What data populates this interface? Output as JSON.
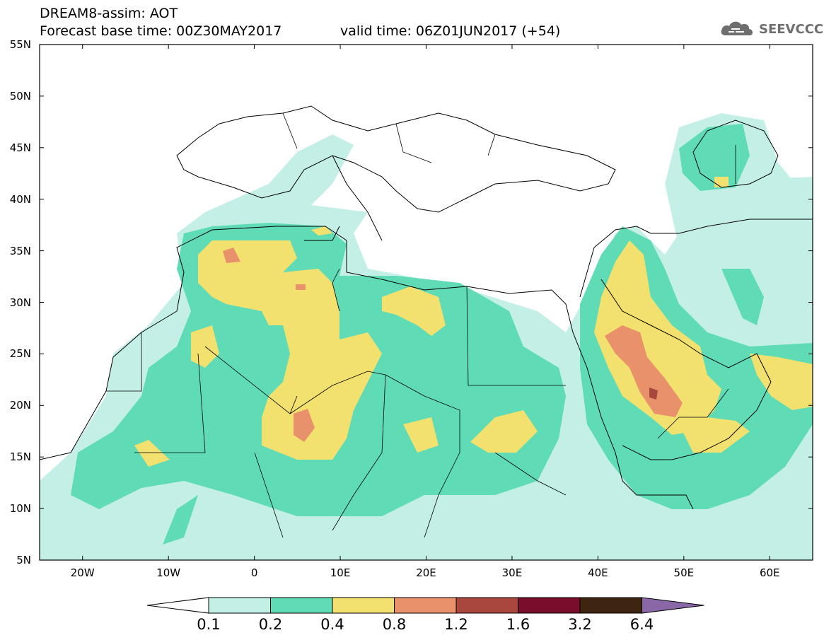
{
  "header": {
    "line1": "DREAM8-assim: AOT",
    "line2": "Forecast base time: 00Z30MAY2017",
    "line3": "valid time: 06Z01JUN2017 (+54)"
  },
  "logo": {
    "text": "SEEVCCC",
    "icon": "cloud-logo-icon"
  },
  "axes": {
    "lat_ticks": [
      "55N",
      "50N",
      "45N",
      "40N",
      "35N",
      "30N",
      "25N",
      "20N",
      "15N",
      "10N",
      "5N"
    ],
    "lat_values": [
      55,
      50,
      45,
      40,
      35,
      30,
      25,
      20,
      15,
      10,
      5
    ],
    "lon_ticks": [
      "20W",
      "10W",
      "0",
      "10E",
      "20E",
      "30E",
      "40E",
      "50E",
      "60E"
    ],
    "lon_values": [
      -20,
      -10,
      0,
      10,
      20,
      30,
      40,
      50,
      60
    ],
    "lon_range": [
      -25,
      65
    ],
    "lat_range": [
      5,
      55
    ]
  },
  "legend": {
    "labels": [
      "0.1",
      "0.2",
      "0.4",
      "0.8",
      "1.2",
      "1.6",
      "3.2",
      "6.4"
    ],
    "colors": [
      "#c3efe6",
      "#5fdcb5",
      "#f2e06f",
      "#e9916b",
      "#a9473f",
      "#7a0d2c",
      "#3d2512",
      "#8a68a8"
    ]
  },
  "colors": {
    "land": "#ffffff",
    "border": "#000000",
    "c1": "#c3efe6",
    "c2": "#5fdcb5",
    "c3": "#f2e06f",
    "c4": "#e9916b",
    "c5": "#a9473f"
  }
}
